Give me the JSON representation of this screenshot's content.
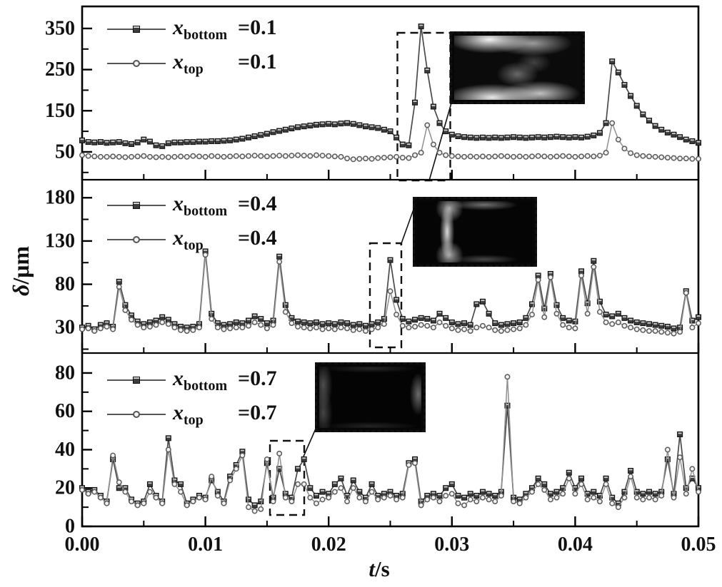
{
  "chart_data": {
    "type": "line",
    "title": "",
    "xlabel_var": "t",
    "xlabel_rest": "/s",
    "ylabel_var": "δ",
    "ylabel_rest": "/μm",
    "grid": false,
    "legend_position": "upper-left-inside",
    "colors": {
      "bottom_series": "#3d3d3d",
      "top_series": "#909090",
      "frame": "#000000"
    },
    "x": {
      "min": 0,
      "max": 0.05,
      "start": 0,
      "step": 0.0005,
      "n": 101,
      "major_ticks": [
        {
          "t": 0.0,
          "label": "0.00"
        },
        {
          "t": 0.01,
          "label": "0.01"
        },
        {
          "t": 0.02,
          "label": "0.02"
        },
        {
          "t": 0.03,
          "label": "0.03"
        },
        {
          "t": 0.04,
          "label": "0.04"
        },
        {
          "t": 0.05,
          "label": "0.05"
        }
      ],
      "minor_ticks": [
        0.005,
        0.015,
        0.025,
        0.035,
        0.045
      ]
    },
    "panels": [
      {
        "name": "x=0.1",
        "ylim": [
          -17.7,
          403.6
        ],
        "yticks": [
          {
            "v": 350,
            "label": "350"
          },
          {
            "v": 250,
            "label": "250"
          },
          {
            "v": 150,
            "label": "150"
          },
          {
            "v": 50,
            "label": "50"
          }
        ],
        "yminors": [
          0,
          100,
          200,
          300
        ],
        "legend": [
          {
            "variable": "x",
            "subscript": "bottom",
            "value": "=0.1"
          },
          {
            "variable": "x",
            "subscript": "top",
            "value": "=0.1"
          }
        ],
        "series": [
          {
            "name": "x_bottom=0.1",
            "marker": "square",
            "color": "#3d3d3d",
            "values": [
              78,
              74,
              73,
              74,
              72,
              73,
              74,
              71,
              69,
              73,
              80,
              75,
              66,
              64,
              71,
              73,
              73,
              74,
              74,
              75,
              75,
              76,
              76,
              77,
              78,
              80,
              82,
              85,
              88,
              91,
              94,
              98,
              101,
              104,
              107,
              110,
              112,
              114,
              116,
              117,
              118,
              117,
              119,
              120,
              118,
              115,
              112,
              110,
              108,
              104,
              100,
              85,
              68,
              66,
              170,
              355,
              248,
              160,
              120,
              100,
              92,
              88,
              86,
              85,
              84,
              85,
              84,
              85,
              84,
              85,
              86,
              85,
              84,
              85,
              86,
              85,
              86,
              87,
              86,
              85,
              86,
              85,
              87,
              90,
              96,
              120,
              270,
              243,
              213,
              186,
              162,
              141,
              126,
              113,
              104,
              97,
              92,
              86,
              80,
              76,
              72
            ]
          },
          {
            "name": "x_top=0.1",
            "marker": "circle",
            "color": "#909090",
            "values": [
              42,
              40,
              39,
              38,
              38,
              39,
              38,
              37,
              38,
              39,
              40,
              38,
              37,
              38,
              37,
              38,
              39,
              38,
              40,
              39,
              38,
              40,
              39,
              38,
              39,
              40,
              39,
              40,
              41,
              40,
              39,
              40,
              41,
              40,
              41,
              42,
              41,
              40,
              42,
              41,
              40,
              39,
              38,
              34,
              32,
              33,
              34,
              33,
              35,
              36,
              37,
              38,
              36,
              35,
              42,
              48,
              115,
              68,
              48,
              42,
              40,
              39,
              38,
              39,
              38,
              39,
              38,
              39,
              40,
              39,
              38,
              39,
              38,
              39,
              40,
              39,
              38,
              39,
              40,
              39,
              38,
              39,
              40,
              39,
              41,
              48,
              120,
              80,
              58,
              47,
              42,
              40,
              39,
              38,
              37,
              36,
              35,
              34,
              34,
              33,
              33
            ]
          }
        ]
      },
      {
        "name": "x=0.4",
        "ylim": [
          0.5,
          200.8
        ],
        "yticks": [
          {
            "v": 180,
            "label": "180"
          },
          {
            "v": 130,
            "label": "130"
          },
          {
            "v": 80,
            "label": "80"
          },
          {
            "v": 30,
            "label": "30"
          }
        ],
        "yminors": [
          5,
          55,
          105,
          155
        ],
        "legend": [
          {
            "variable": "x",
            "subscript": "bottom",
            "value": "=0.4"
          },
          {
            "variable": "x",
            "subscript": "top",
            "value": "=0.4"
          }
        ],
        "series": [
          {
            "name": "x_bottom=0.4",
            "marker": "square",
            "color": "#3d3d3d",
            "values": [
              30,
              32,
              28,
              33,
              35,
              31,
              83,
              56,
              44,
              37,
              34,
              36,
              38,
              42,
              39,
              34,
              31,
              30,
              31,
              34,
              118,
              46,
              35,
              33,
              34,
              36,
              35,
              38,
              43,
              40,
              35,
              38,
              112,
              56,
              41,
              37,
              36,
              35,
              36,
              34,
              35,
              34,
              36,
              35,
              33,
              34,
              32,
              34,
              36,
              40,
              108,
              62,
              40,
              37,
              39,
              41,
              40,
              38,
              46,
              41,
              36,
              34,
              35,
              33,
              57,
              60,
              46,
              35,
              33,
              34,
              35,
              36,
              41,
              57,
              90,
              52,
              92,
              56,
              41,
              38,
              37,
              95,
              58,
              107,
              60,
              45,
              43,
              46,
              41,
              38,
              36,
              35,
              34,
              33,
              32,
              31,
              29,
              30,
              72,
              38,
              42
            ]
          },
          {
            "name": "x_top=0.4",
            "marker": "circle",
            "color": "#909090",
            "values": [
              28,
              29,
              26,
              29,
              31,
              28,
              77,
              50,
              39,
              33,
              30,
              31,
              33,
              36,
              34,
              30,
              27,
              26,
              27,
              30,
              114,
              40,
              30,
              28,
              29,
              30,
              30,
              32,
              36,
              33,
              29,
              33,
              106,
              48,
              35,
              31,
              30,
              29,
              30,
              28,
              29,
              28,
              30,
              29,
              27,
              28,
              26,
              28,
              30,
              34,
              72,
              45,
              32,
              30,
              31,
              33,
              32,
              30,
              36,
              32,
              29,
              27,
              28,
              26,
              30,
              32,
              30,
              27,
              26,
              27,
              28,
              29,
              33,
              45,
              85,
              42,
              88,
              46,
              33,
              30,
              29,
              90,
              46,
              100,
              48,
              36,
              34,
              36,
              32,
              30,
              28,
              27,
              26,
              26,
              25,
              24,
              23,
              25,
              70,
              30,
              35
            ]
          }
        ]
      },
      {
        "name": "x=0.7",
        "ylim": [
          0,
          90.4
        ],
        "yticks": [
          {
            "v": 80,
            "label": "80"
          },
          {
            "v": 60,
            "label": "60"
          },
          {
            "v": 40,
            "label": "40"
          },
          {
            "v": 20,
            "label": "20"
          },
          {
            "v": 0,
            "label": "0"
          }
        ],
        "yminors": [
          10,
          30,
          50,
          70
        ],
        "legend": [
          {
            "variable": "x",
            "subscript": "bottom",
            "value": "=0.7"
          },
          {
            "variable": "x",
            "subscript": "top",
            "value": "=0.7"
          }
        ],
        "series": [
          {
            "name": "x_bottom=0.7",
            "marker": "square",
            "color": "#3d3d3d",
            "values": [
              20,
              18,
              19,
              16,
              13,
              35,
              20,
              20,
              14,
              12,
              13,
              22,
              16,
              13,
              46,
              24,
              22,
              12,
              14,
              16,
              15,
              24,
              18,
              13,
              26,
              32,
              39,
              14,
              11,
              13,
              33,
              15,
              30,
              17,
              15,
              30,
              35,
              20,
              16,
              18,
              17,
              22,
              25,
              16,
              24,
              18,
              15,
              22,
              16,
              17,
              18,
              16,
              17,
              33,
              35,
              13,
              16,
              17,
              16,
              20,
              22,
              16,
              15,
              17,
              16,
              18,
              17,
              16,
              18,
              63,
              15,
              14,
              17,
              20,
              25,
              22,
              17,
              18,
              20,
              28,
              20,
              25,
              17,
              18,
              16,
              25,
              15,
              12,
              18,
              29,
              18,
              17,
              18,
              17,
              18,
              35,
              17,
              48,
              20,
              25,
              20
            ]
          },
          {
            "name": "x_top=0.7",
            "marker": "circle",
            "color": "#909090",
            "values": [
              19,
              17,
              18,
              15,
              12,
              37,
              23,
              18,
              13,
              11,
              12,
              18,
              15,
              12,
              40,
              22,
              18,
              11,
              13,
              15,
              14,
              26,
              16,
              12,
              24,
              30,
              37,
              10,
              8,
              9,
              35,
              13,
              38,
              15,
              13,
              22,
              22,
              15,
              12,
              14,
              15,
              18,
              20,
              13,
              20,
              15,
              13,
              18,
              14,
              15,
              16,
              14,
              15,
              32,
              33,
              11,
              14,
              15,
              13,
              16,
              17,
              12,
              11,
              14,
              13,
              15,
              14,
              13,
              16,
              78,
              13,
              12,
              15,
              18,
              22,
              19,
              14,
              15,
              17,
              25,
              17,
              22,
              14,
              15,
              13,
              22,
              12,
              10,
              15,
              26,
              15,
              14,
              15,
              14,
              16,
              40,
              15,
              36,
              17,
              30,
              18
            ]
          }
        ]
      }
    ],
    "annotations": {
      "callout_boxes": "dashed rectangles around the largest film-thickness spike in each panel, linked to photo insets"
    }
  }
}
